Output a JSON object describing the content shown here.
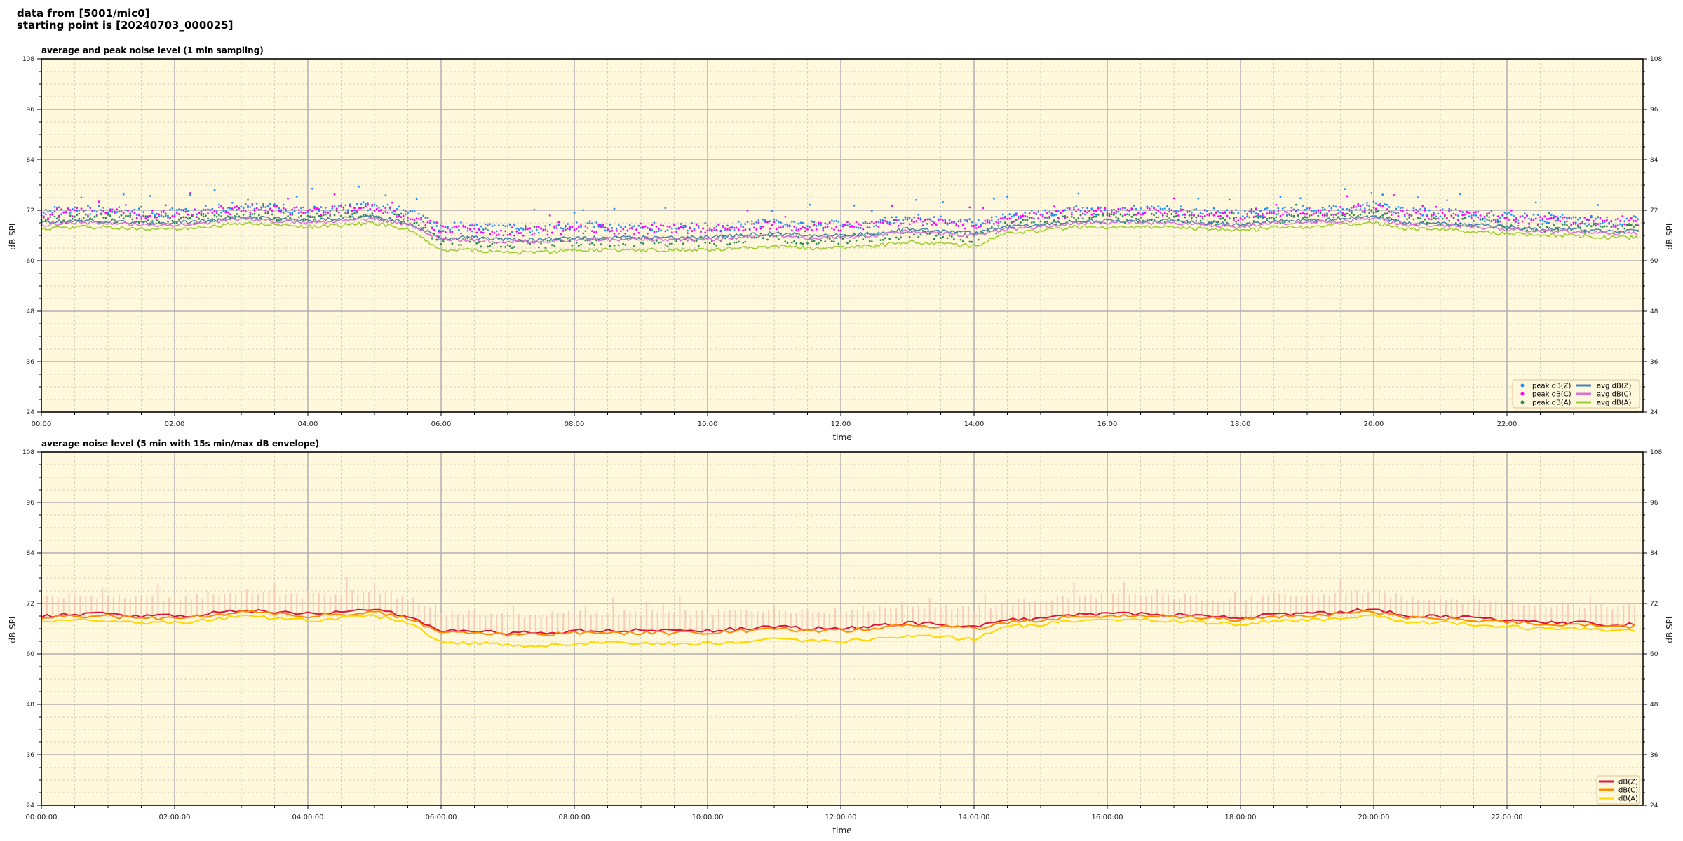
{
  "header": {
    "line1": "data from [5001/mic0]",
    "line2": "starting point is [20240703_000025]"
  },
  "chart_data": [
    {
      "type": "scatter+line",
      "title": "average and peak noise level (1 min sampling)",
      "xlabel": "time",
      "ylabel": "dB SPL",
      "ylim": [
        24,
        108
      ],
      "yticks": [
        24,
        36,
        48,
        60,
        72,
        84,
        96,
        108
      ],
      "xticks": [
        "00:00",
        "02:00",
        "04:00",
        "06:00",
        "08:00",
        "10:00",
        "12:00",
        "14:00",
        "16:00",
        "18:00",
        "20:00",
        "22:00"
      ],
      "xlim_hours": [
        0,
        24
      ],
      "grid": true,
      "legend_position": "bottom-right",
      "background": "#fff8dc",
      "x_interval": "30 min",
      "series": [
        {
          "name": "peak dB(Z)",
          "kind": "points",
          "color": "#1e90ff",
          "values": [
            71.5,
            72,
            72,
            71.5,
            71.5,
            72,
            73,
            72.5,
            72,
            72.5,
            73,
            71.5,
            68,
            68,
            67.5,
            67.5,
            68,
            68,
            68,
            68,
            68,
            68.5,
            69,
            68.5,
            68.5,
            69,
            70,
            69.5,
            69,
            70.5,
            71,
            72,
            72,
            72,
            72,
            71.5,
            71,
            72,
            72,
            72.5,
            73,
            71.5,
            71.5,
            71,
            70.5,
            70,
            70,
            69.5
          ]
        },
        {
          "name": "peak dB(C)",
          "kind": "points",
          "color": "#ff00ff",
          "values": [
            71,
            71.5,
            71.5,
            71,
            71,
            71.5,
            72.5,
            72,
            71.5,
            72,
            72.5,
            71,
            67.5,
            67.5,
            67,
            67,
            67.5,
            67.5,
            67.5,
            67.5,
            67.5,
            68,
            68.5,
            68,
            68,
            68.5,
            69.5,
            69,
            68.5,
            70,
            70.5,
            71.5,
            71.5,
            71.5,
            71.5,
            71,
            70.5,
            71.5,
            71.5,
            72,
            72.5,
            71,
            71,
            70.5,
            70,
            69.5,
            69.5,
            69
          ]
        },
        {
          "name": "peak dB(A)",
          "kind": "points",
          "color": "#2e8b57",
          "values": [
            69.5,
            70,
            70,
            69.5,
            69.5,
            70,
            71,
            70.5,
            70,
            70.5,
            71,
            69.5,
            64.5,
            64.5,
            64,
            64,
            64.5,
            64.5,
            64.5,
            64.5,
            64.5,
            65,
            65.5,
            65,
            65,
            65.5,
            66.5,
            66,
            65.5,
            68.5,
            69,
            70,
            70,
            70,
            70,
            69.5,
            69,
            70,
            70,
            70.5,
            71,
            69.5,
            69.5,
            69,
            68.5,
            68,
            68,
            67.5
          ]
        },
        {
          "name": "avg dB(Z)",
          "kind": "line",
          "color": "#4682b4",
          "values": [
            69,
            69.5,
            69.5,
            69,
            69,
            69.5,
            70.5,
            70,
            69.5,
            70,
            70.5,
            69,
            65.5,
            65.5,
            65,
            65,
            65.5,
            65.5,
            65.5,
            65.5,
            65.5,
            66,
            66.5,
            66,
            66,
            66.5,
            67.5,
            67,
            66.5,
            68,
            68.5,
            69.5,
            69.5,
            69.5,
            69.5,
            69,
            68.5,
            69.5,
            69.5,
            70,
            70.5,
            69,
            69,
            68.5,
            68,
            67.5,
            67.5,
            67
          ]
        },
        {
          "name": "avg dB(C)",
          "kind": "line",
          "color": "#da70d6",
          "values": [
            68.5,
            69,
            69,
            68.5,
            68.5,
            69,
            70,
            69.5,
            69,
            69.5,
            70,
            68.5,
            65,
            65,
            64.5,
            64.5,
            65,
            65,
            65,
            65,
            65,
            65.5,
            66,
            65.5,
            65.5,
            66,
            67,
            66.5,
            66,
            67.5,
            68,
            69,
            69,
            69,
            69,
            68.5,
            68,
            69,
            69,
            69.5,
            70,
            68.5,
            68.5,
            68,
            67.5,
            67,
            67,
            66.5
          ]
        },
        {
          "name": "avg dB(A)",
          "kind": "line",
          "color": "#9acd32",
          "values": [
            67.5,
            68,
            68,
            67.5,
            67.5,
            68,
            69,
            68.5,
            68,
            68.5,
            69,
            67.5,
            62.5,
            62.5,
            62,
            62,
            62.5,
            62.5,
            62.5,
            62.5,
            62.5,
            63,
            63.5,
            63,
            63,
            63.5,
            64.5,
            64,
            63.5,
            66.5,
            67,
            68,
            68,
            68,
            68,
            67.5,
            67,
            68,
            68,
            68.5,
            69,
            67.5,
            67.5,
            67,
            66.5,
            66,
            66,
            65.5
          ]
        }
      ]
    },
    {
      "type": "line",
      "title": "average noise level (5 min with 15s min/max dB envelope)",
      "xlabel": "time",
      "ylabel": "dB SPL",
      "ylim": [
        24,
        108
      ],
      "yticks": [
        24,
        36,
        48,
        60,
        72,
        84,
        96,
        108
      ],
      "xticks": [
        "00:00:00",
        "02:00:00",
        "04:00:00",
        "06:00:00",
        "08:00:00",
        "10:00:00",
        "12:00:00",
        "14:00:00",
        "16:00:00",
        "18:00:00",
        "20:00:00",
        "22:00:00"
      ],
      "xlim_hours": [
        0,
        24
      ],
      "grid": true,
      "legend_position": "bottom-right",
      "background": "#fff8dc",
      "x_interval": "30 min",
      "envelope": {
        "color": "#f4c2b0",
        "max": [
          72.5,
          73,
          73,
          72.5,
          72.5,
          73,
          74,
          73.5,
          73,
          73.5,
          74,
          72.5,
          69,
          69,
          68.5,
          68.5,
          69,
          69,
          69,
          69,
          69,
          69.5,
          70,
          69.5,
          69.5,
          70,
          71,
          70.5,
          70,
          71.5,
          72,
          73,
          73,
          73,
          73,
          72.5,
          72,
          73,
          73,
          73.5,
          74,
          72.5,
          72.5,
          72,
          71.5,
          71,
          71,
          70.5
        ]
      },
      "series": [
        {
          "name": "dB(Z)",
          "color": "#dc143c",
          "values": [
            69,
            69.5,
            69.5,
            69,
            69,
            69.5,
            70.5,
            70,
            69.5,
            70,
            70.5,
            69,
            65.5,
            65.5,
            65,
            65,
            65.5,
            65.5,
            65.5,
            65.5,
            65.5,
            66,
            66.5,
            66,
            66,
            66.5,
            67.5,
            67,
            66.5,
            68,
            68.5,
            69.5,
            69.5,
            69.5,
            69.5,
            69,
            68.5,
            69.5,
            69.5,
            70,
            70.5,
            69,
            69,
            68.5,
            68,
            67.5,
            67.5,
            67
          ]
        },
        {
          "name": "dB(C)",
          "color": "#ff8c00",
          "values": [
            68.5,
            69,
            69,
            68.5,
            68.5,
            69,
            70,
            69.5,
            69,
            69.5,
            70,
            68.5,
            65,
            65,
            64.5,
            64.5,
            65,
            65,
            65,
            65,
            65,
            65.5,
            66,
            65.5,
            65.5,
            66,
            67,
            66.5,
            66,
            67.5,
            68,
            69,
            69,
            69,
            69,
            68.5,
            68,
            69,
            69,
            69.5,
            70,
            68.5,
            68.5,
            68,
            67.5,
            67,
            67,
            66.5
          ]
        },
        {
          "name": "dB(A)",
          "color": "#ffd700",
          "values": [
            67.5,
            68,
            68,
            67.5,
            67.5,
            68,
            69,
            68.5,
            68,
            68.5,
            69,
            67.5,
            62.5,
            62.5,
            62,
            62,
            62.5,
            62.5,
            62.5,
            62.5,
            62.5,
            63,
            63.5,
            63,
            63,
            63.5,
            64.5,
            64,
            63.5,
            66.5,
            67,
            68,
            68,
            68,
            68,
            67.5,
            67,
            68,
            68,
            68.5,
            69,
            67.5,
            67.5,
            67,
            66.5,
            66,
            66,
            65.5
          ]
        }
      ]
    }
  ]
}
